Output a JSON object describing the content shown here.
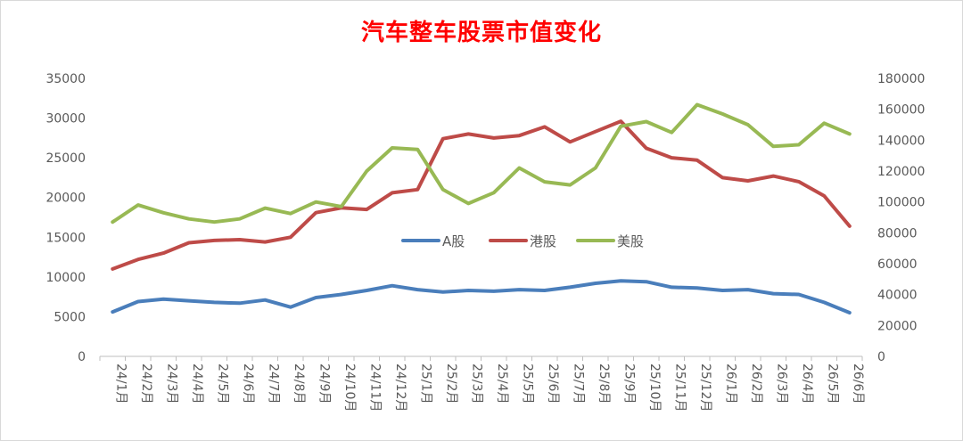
{
  "chart_data": {
    "type": "line",
    "title": "汽车整车股票市值变化",
    "title_color": "#ff0000",
    "x": [
      "24/1月",
      "24/2月",
      "24/3月",
      "24/4月",
      "24/5月",
      "24/6月",
      "24/7月",
      "24/8月",
      "24/9月",
      "24/10月",
      "24/11月",
      "24/12月",
      "25/1月",
      "25/2月",
      "25/3月",
      "25/4月",
      "25/5月",
      "25/6月",
      "25/7月",
      "25/8月",
      "25/9月",
      "25/10月",
      "25/11月",
      "25/12月",
      "26/1月",
      "26/2月",
      "26/3月",
      "26/4月",
      "26/5月",
      "26/6月"
    ],
    "left_axis": {
      "ylim": [
        0,
        35000
      ],
      "ticks": [
        "0",
        "5000",
        "10000",
        "15000",
        "20000",
        "25000",
        "30000",
        "35000"
      ]
    },
    "right_axis": {
      "ylim": [
        0,
        180000
      ],
      "ticks": [
        "0",
        "20000",
        "40000",
        "60000",
        "80000",
        "100000",
        "120000",
        "140000",
        "160000",
        "180000"
      ]
    },
    "series": [
      {
        "name": "A股",
        "axis": "left",
        "color": "#4a7ebb",
        "values": [
          5600,
          6900,
          7200,
          7000,
          6800,
          6700,
          7100,
          6200,
          7400,
          7800,
          8300,
          8900,
          8400,
          8100,
          8300,
          8200,
          8400,
          8300,
          8700,
          9200,
          9500,
          9400,
          8700,
          8600,
          8300,
          8400,
          7900,
          7800,
          6800,
          5500
        ]
      },
      {
        "name": "港股",
        "axis": "left",
        "color": "#be4b48",
        "values": [
          11000,
          12200,
          13000,
          14300,
          14600,
          14700,
          14400,
          15000,
          18100,
          18700,
          18500,
          20600,
          21000,
          27400,
          28000,
          27500,
          27800,
          28900,
          27000,
          28300,
          29600,
          26200,
          25000,
          24700,
          22500,
          22100,
          22700,
          22000,
          20200,
          16400
        ]
      },
      {
        "name": "美股",
        "axis": "right",
        "color": "#98b954",
        "values": [
          87000,
          98000,
          93000,
          89000,
          87000,
          89000,
          96000,
          92500,
          100000,
          97000,
          120000,
          135000,
          134000,
          108000,
          99000,
          106000,
          122000,
          113000,
          111000,
          122000,
          149000,
          152000,
          145000,
          163000,
          157000,
          150000,
          136000,
          137000,
          151000,
          144000
        ]
      }
    ],
    "legend_position": "center",
    "grid": false
  }
}
